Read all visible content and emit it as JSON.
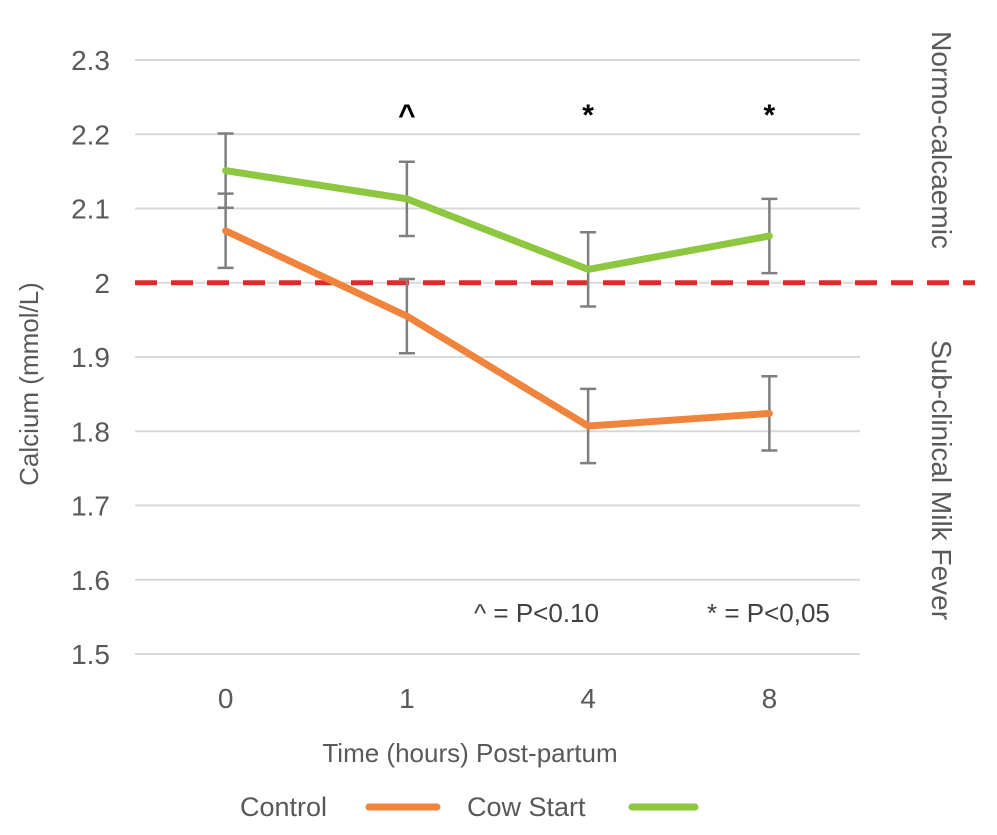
{
  "chart_data": {
    "type": "line",
    "categories": [
      "0",
      "1",
      "4",
      "8"
    ],
    "series": [
      {
        "name": "Control",
        "color": "#F0843C",
        "values": [
          2.07,
          1.955,
          1.807,
          1.824
        ],
        "error": [
          0.05,
          0.05,
          0.05,
          0.05
        ]
      },
      {
        "name": "Cow Start",
        "color": "#8DC63F",
        "values": [
          2.151,
          2.113,
          2.018,
          2.063
        ],
        "error": [
          0.05,
          0.05,
          0.05,
          0.05
        ]
      }
    ],
    "ylim": [
      1.5,
      2.3
    ],
    "yticks": [
      "2.3",
      "2.2",
      "2.1",
      "2",
      "1.9",
      "1.8",
      "1.7",
      "1.6",
      "1.5"
    ],
    "ytick_values": [
      2.3,
      2.2,
      2.1,
      2.0,
      1.9,
      1.8,
      1.7,
      1.6,
      1.5
    ],
    "xlabel": "Time (hours) Post-partum",
    "ylabel": "Calcium (mmol/L)",
    "grid": true,
    "legend_position": "bottom",
    "threshold": {
      "value": 2.0,
      "color": "#E02B2B",
      "style": "dashed"
    },
    "significance": [
      {
        "category": "1",
        "symbol": "^"
      },
      {
        "category": "4",
        "symbol": "*"
      },
      {
        "category": "8",
        "symbol": "*"
      }
    ],
    "annotations": {
      "p010": "^ = P<0.10",
      "p005": "* =  P<0,05",
      "zone_upper": "Normo-calcaemic",
      "zone_lower": "Sub-clinical Milk Fever"
    },
    "error_bar_color": "#7F7F7F",
    "grid_color": "#D9D9D9"
  }
}
